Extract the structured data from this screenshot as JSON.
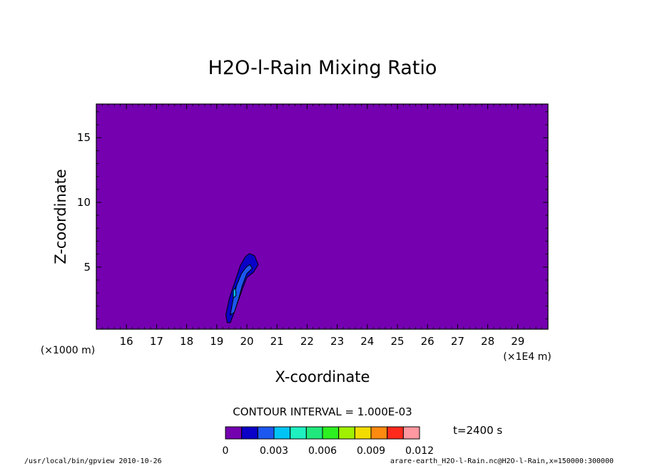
{
  "chart_data": {
    "type": "contour",
    "title": "H2O-l-Rain Mixing Ratio",
    "xlabel": "X-coordinate",
    "ylabel": "Z-coordinate",
    "x_unit_label": "(×1E4 m)",
    "y_unit_label": "(×1000 m)",
    "xlim": [
      15.0,
      30.0
    ],
    "ylim": [
      0.2,
      17.6
    ],
    "x_ticks": [
      16,
      17,
      18,
      19,
      20,
      21,
      22,
      23,
      24,
      25,
      26,
      27,
      28,
      29
    ],
    "y_ticks": [
      5,
      10,
      15
    ],
    "contour_interval": "CONTOUR INTERVAL = 1.000E-03",
    "time_label": "t=2400 s",
    "colorbar": {
      "levels": [
        0,
        0.001,
        0.002,
        0.003,
        0.004,
        0.005,
        0.006,
        0.007,
        0.008,
        0.009,
        0.01,
        0.011,
        0.012
      ],
      "tick_labels": [
        "0",
        "0.003",
        "0.006",
        "0.009",
        "0.012"
      ],
      "tick_values": [
        0,
        0.003,
        0.006,
        0.009,
        0.012
      ],
      "colors": [
        "#7400b0",
        "#0a00c8",
        "#1c57f0",
        "#00c4f6",
        "#1ef0c0",
        "#20e87c",
        "#2ef020",
        "#a0f000",
        "#f2dc00",
        "#ff8a10",
        "#ff2a1c",
        "#ff98a0"
      ]
    },
    "contours": [
      {
        "level": 0.001,
        "points": [
          [
            19.35,
            0.7
          ],
          [
            19.3,
            1.3
          ],
          [
            19.42,
            2.6
          ],
          [
            19.62,
            4.0
          ],
          [
            19.78,
            5.1
          ],
          [
            19.95,
            5.8
          ],
          [
            20.08,
            6.05
          ],
          [
            20.25,
            5.9
          ],
          [
            20.38,
            5.2
          ],
          [
            20.22,
            4.6
          ],
          [
            20.0,
            4.2
          ],
          [
            19.85,
            3.3
          ],
          [
            19.7,
            2.3
          ],
          [
            19.55,
            1.3
          ],
          [
            19.45,
            0.7
          ]
        ]
      },
      {
        "level": 0.002,
        "points": [
          [
            19.45,
            1.3
          ],
          [
            19.55,
            2.6
          ],
          [
            19.66,
            3.6
          ],
          [
            19.82,
            4.5
          ],
          [
            19.98,
            5.0
          ],
          [
            20.1,
            5.2
          ],
          [
            20.18,
            4.9
          ],
          [
            20.0,
            4.5
          ],
          [
            19.85,
            3.6
          ],
          [
            19.72,
            2.5
          ],
          [
            19.58,
            1.5
          ]
        ]
      },
      {
        "level": 0.003,
        "points": [
          [
            19.55,
            2.6
          ],
          [
            19.55,
            3.2
          ],
          [
            19.62,
            3.4
          ],
          [
            19.64,
            2.8
          ]
        ]
      }
    ],
    "footer_left": "/usr/local/bin/gpview  2010-10-26",
    "footer_right": "arare-earth_H2O-l-Rain.nc@H2O-l-Rain,x=150000:300000"
  }
}
